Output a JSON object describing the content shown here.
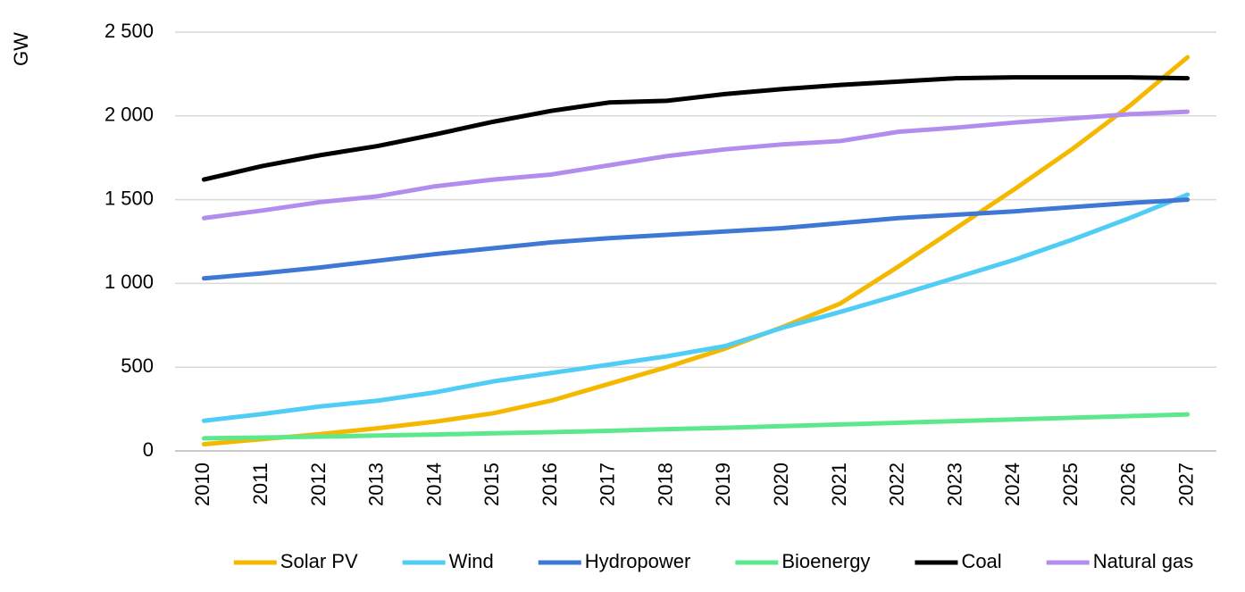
{
  "chart_data": {
    "type": "line",
    "y_label": "GW",
    "categories": [
      "2010",
      "2011",
      "2012",
      "2013",
      "2014",
      "2015",
      "2016",
      "2017",
      "2018",
      "2019",
      "2020",
      "2021",
      "2022",
      "2023",
      "2024",
      "2025",
      "2026",
      "2027"
    ],
    "series": [
      {
        "name": "Solar PV",
        "color": "#f5b800",
        "values": [
          40,
          70,
          100,
          135,
          175,
          225,
          300,
          400,
          500,
          610,
          740,
          880,
          1100,
          1330,
          1560,
          1800,
          2060,
          2350
        ]
      },
      {
        "name": "Wind",
        "color": "#4fcdf5",
        "values": [
          180,
          220,
          265,
          300,
          350,
          415,
          465,
          515,
          565,
          625,
          735,
          830,
          930,
          1035,
          1140,
          1260,
          1390,
          1530
        ]
      },
      {
        "name": "Hydropower",
        "color": "#3e78d4",
        "values": [
          1030,
          1060,
          1095,
          1135,
          1175,
          1210,
          1245,
          1270,
          1290,
          1310,
          1330,
          1360,
          1390,
          1410,
          1430,
          1455,
          1480,
          1500
        ]
      },
      {
        "name": "Bioenergy",
        "color": "#5ee88e",
        "values": [
          75,
          80,
          85,
          92,
          98,
          105,
          112,
          120,
          130,
          138,
          148,
          158,
          168,
          178,
          188,
          198,
          208,
          218
        ]
      },
      {
        "name": "Coal",
        "color": "#000000",
        "values": [
          1620,
          1700,
          1765,
          1820,
          1890,
          1965,
          2030,
          2080,
          2090,
          2130,
          2160,
          2185,
          2205,
          2225,
          2230,
          2230,
          2230,
          2225
        ]
      },
      {
        "name": "Natural gas",
        "color": "#b38ded",
        "values": [
          1390,
          1435,
          1485,
          1520,
          1580,
          1620,
          1650,
          1705,
          1760,
          1800,
          1830,
          1850,
          1905,
          1930,
          1960,
          1985,
          2010,
          2025
        ]
      }
    ],
    "ylim": [
      0,
      2500
    ],
    "yticks": [
      0,
      500,
      {
        "value": 1000,
        "label": "1 000"
      },
      {
        "value": 1500,
        "label": "1 500"
      },
      {
        "value": 2000,
        "label": "2 000"
      },
      {
        "value": 2500,
        "label": "2 500"
      }
    ],
    "grid": true,
    "legend": "bottom"
  }
}
